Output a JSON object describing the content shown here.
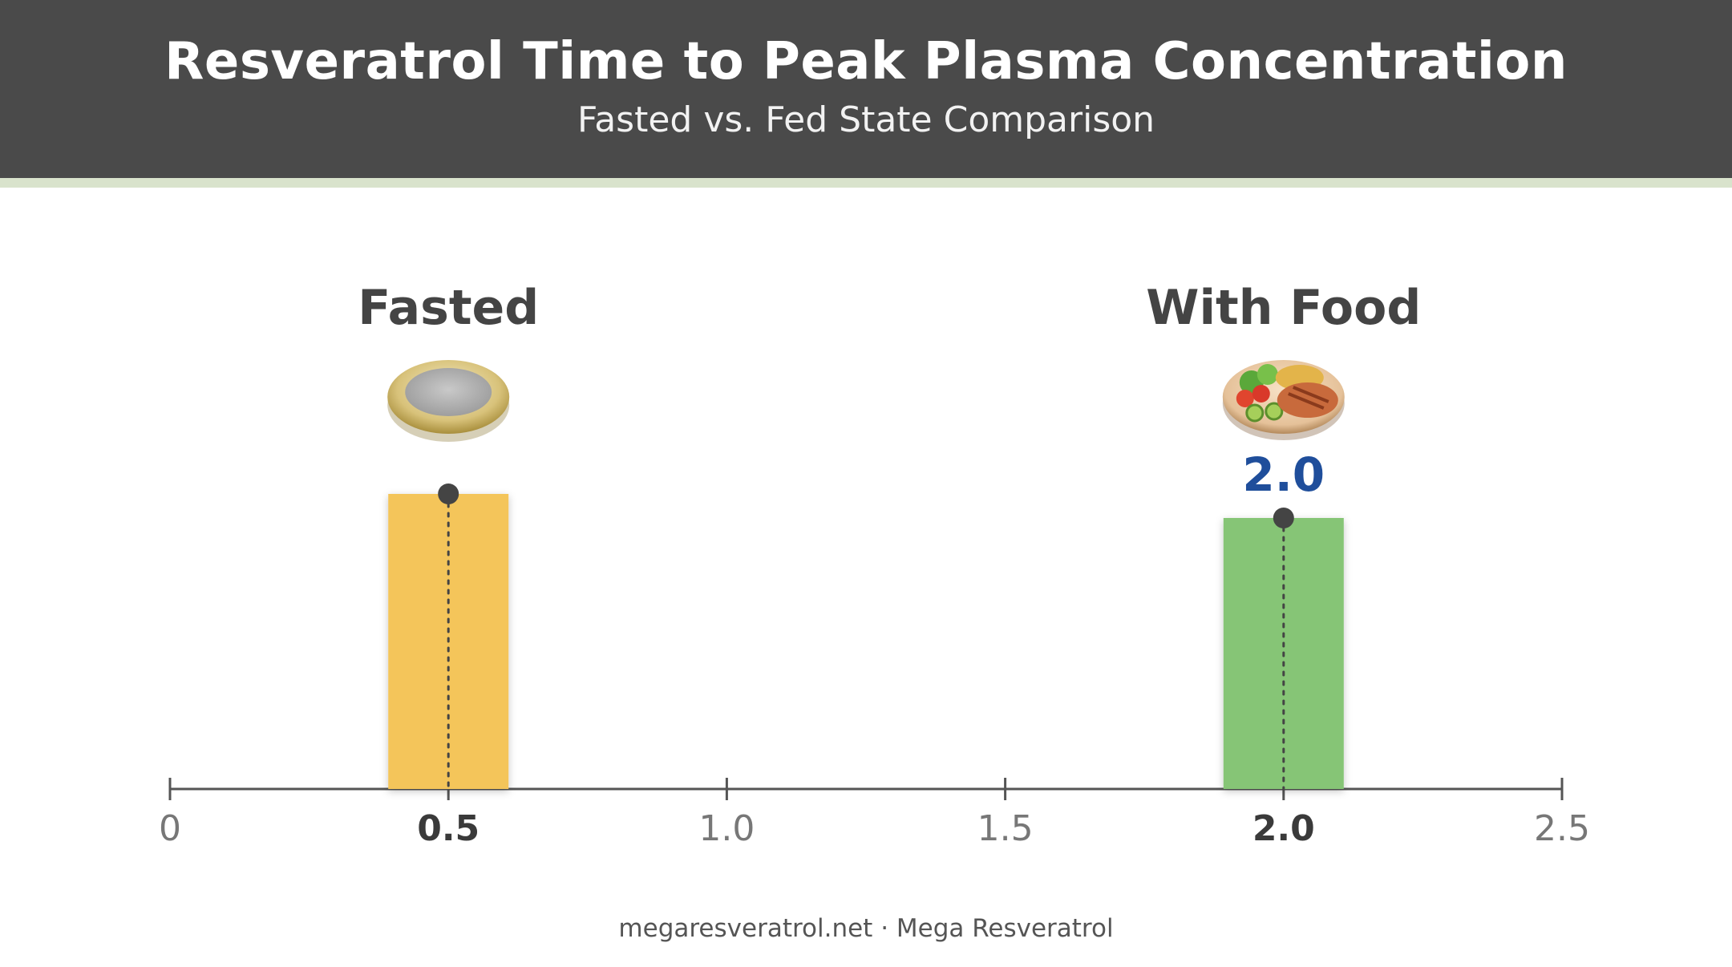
{
  "header": {
    "title": "Resveratrol Time to Peak Plasma Concentration",
    "subtitle": "Fasted vs. Fed State Comparison"
  },
  "chart_data": {
    "type": "bar",
    "title": "Resveratrol Time to Peak Plasma Concentration",
    "subtitle": "Fasted vs. Fed State Comparison",
    "categories": [
      "Fasted",
      "With Food"
    ],
    "values": [
      0.5,
      2.0
    ],
    "icons": [
      "empty-plate-icon",
      "food-plate-icon"
    ],
    "data_labels": [
      "",
      "2.0"
    ],
    "colors": [
      "#f4c55a",
      "#86c576"
    ],
    "data_label_color": "#1f4e9b",
    "xlim": [
      0,
      2.5
    ],
    "xticks": [
      "0",
      "0.5",
      "1.0",
      "1.5",
      "2.0",
      "2.5"
    ],
    "xlabel": "",
    "ylabel": "",
    "grid": false,
    "legend": "none"
  },
  "footer": {
    "text": "megaresveratrol.net · Mega Resveratrol"
  }
}
